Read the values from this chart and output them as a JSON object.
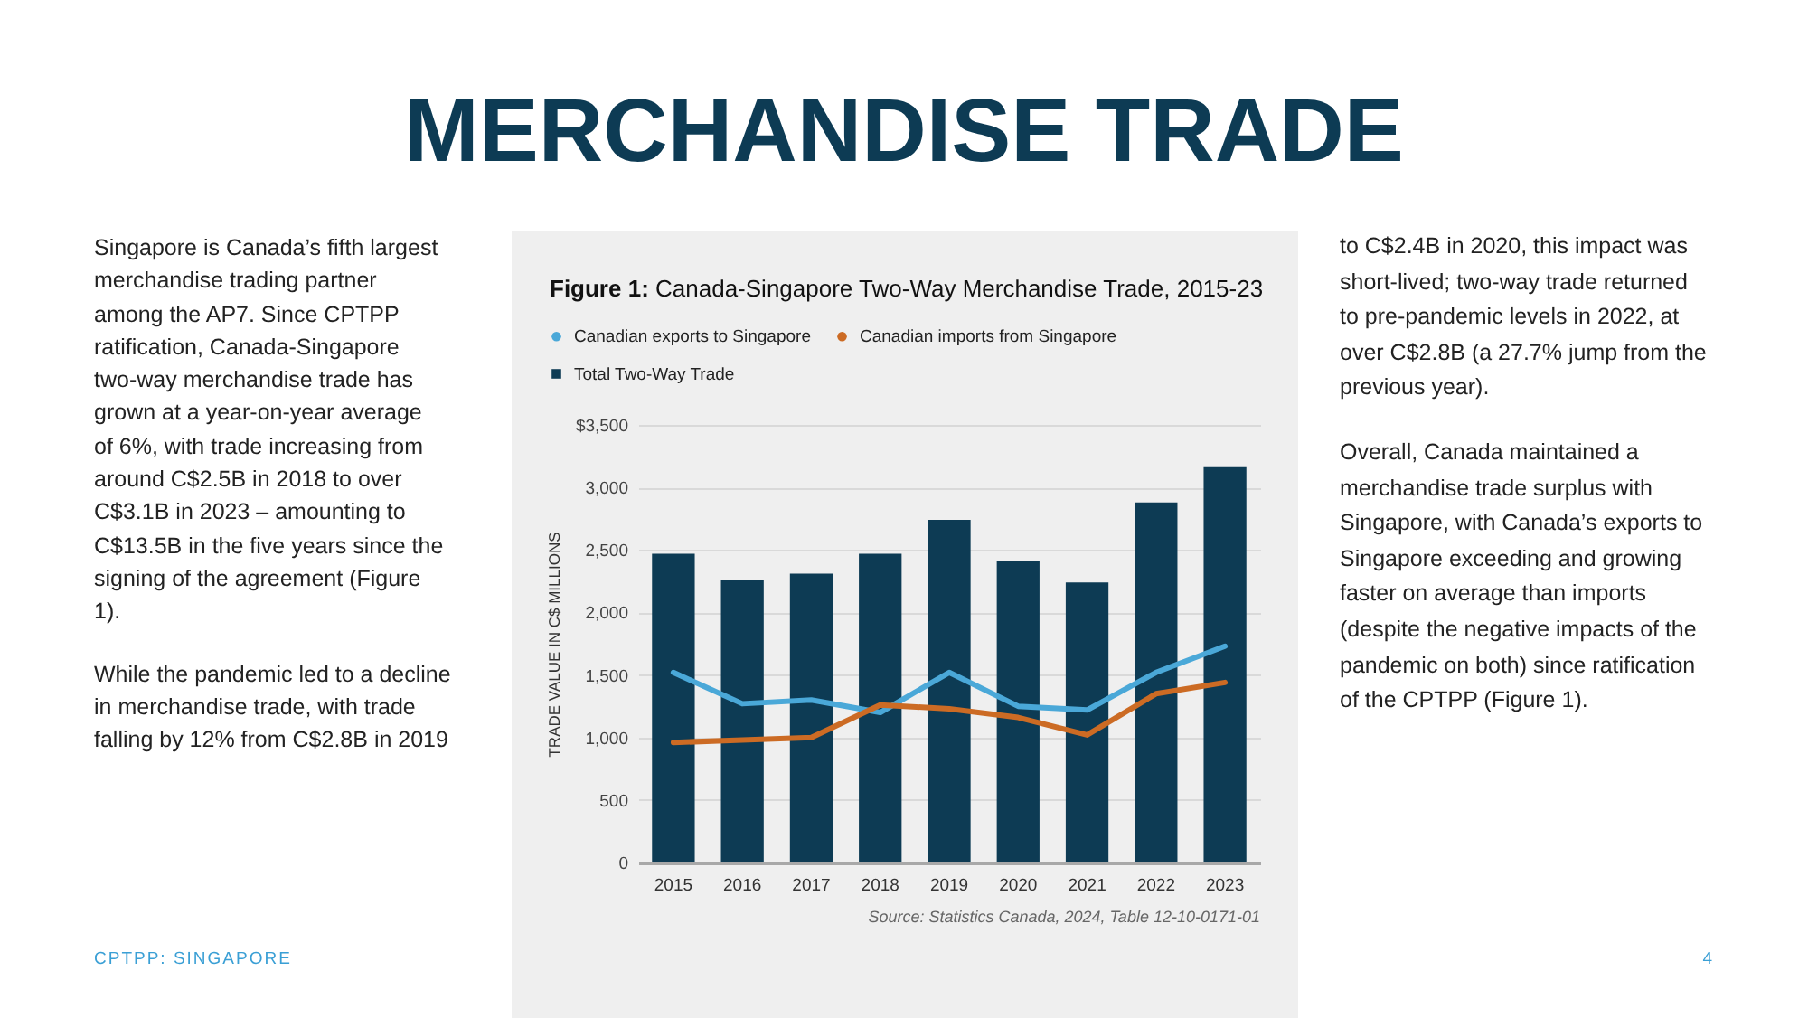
{
  "chart_data": {
    "type": "bar",
    "title": "MERCHANDISE TRADE",
    "subtitle": "Figure 1: Canada-Singapore Two-Way Merchandise Trade, 2015-23",
    "ylabel": "TRADE VALUE IN C$ MILLIONS",
    "categories": [
      "2015",
      "2016",
      "2017",
      "2018",
      "2019",
      "2020",
      "2021",
      "2022",
      "2023"
    ],
    "series": [
      {
        "name": "Canadian exports to Singapore",
        "type": "line",
        "color": "#4aa8d8",
        "values": [
          1520,
          1270,
          1300,
          1200,
          1520,
          1250,
          1220,
          1520,
          1730
        ]
      },
      {
        "name": "Canadian imports from Singapore",
        "type": "line",
        "color": "#cc6b24",
        "values": [
          960,
          980,
          1000,
          1260,
          1230,
          1160,
          1020,
          1350,
          1440
        ]
      },
      {
        "name": "Total Two-Way Trade",
        "color": "#0d3b54",
        "values": [
          2470,
          2260,
          2310,
          2470,
          2740,
          2410,
          2240,
          2880,
          3170
        ]
      }
    ],
    "ylim": [
      0,
      3500
    ],
    "yticks": [
      0,
      500,
      {
        "value": 1000,
        "label": "1,000"
      },
      {
        "value": 1500,
        "label": "1,500"
      },
      {
        "value": 2000,
        "label": "2,000"
      },
      {
        "value": 2500,
        "label": "2,500"
      },
      {
        "value": 3000,
        "label": "3,000"
      },
      {
        "value": 3500,
        "label": "$3,500"
      }
    ],
    "grid": "y",
    "legend": "top left",
    "annotations": [
      "Singapore is Canada’s fifth largest merchandise trading partner among the AP7. Since CPTPP ratification, Canada-Singapore two-way merchandise trade has grown at a year-on-year average of 6%, with trade increasing from around C$2.5B in 2018 to over C$3.1B in 2023 – amounting to C$13.5B in the five years since the signing of the agreement (Figure 1).",
      "While the pandemic led to a decline in merchandise trade, with trade falling by 12% from C$2.8B in 2019",
      "to C$2.4B in 2020, this impact was short-lived; two-way trade returned to pre-pandemic levels in 2022, at over C$2.8B (a 27.7% jump from the previous year).",
      "Overall, Canada maintained a merchandise trade surplus with Singapore, with Canada’s exports to Singapore exceeding and growing faster on average than imports (despite the negative impacts of the pandemic on both) since ratification of the CPTPP (Figure 1).",
      "Source: Statistics Canada, 2024, Table 12-10-0171-01",
      "CPTPP: SINGAPORE",
      "4"
    ]
  }
}
